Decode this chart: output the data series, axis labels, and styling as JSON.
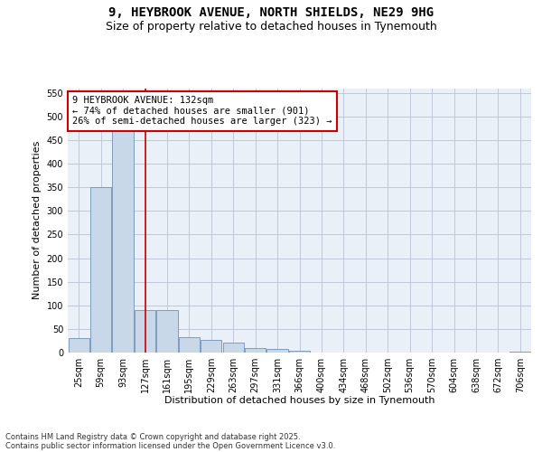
{
  "title_line1": "9, HEYBROOK AVENUE, NORTH SHIELDS, NE29 9HG",
  "title_line2": "Size of property relative to detached houses in Tynemouth",
  "xlabel": "Distribution of detached houses by size in Tynemouth",
  "ylabel": "Number of detached properties",
  "categories": [
    "25sqm",
    "59sqm",
    "93sqm",
    "127sqm",
    "161sqm",
    "195sqm",
    "229sqm",
    "263sqm",
    "297sqm",
    "331sqm",
    "366sqm",
    "400sqm",
    "434sqm",
    "468sqm",
    "502sqm",
    "536sqm",
    "570sqm",
    "604sqm",
    "638sqm",
    "672sqm",
    "706sqm"
  ],
  "values": [
    30,
    350,
    490,
    90,
    90,
    33,
    27,
    22,
    10,
    7,
    4,
    0,
    0,
    0,
    0,
    0,
    0,
    0,
    0,
    0,
    2
  ],
  "bar_color": "#c8d8e8",
  "bar_edge_color": "#7090b8",
  "grid_color": "#c0c8d8",
  "bg_color": "#eaf0f8",
  "vline_color": "#cc0000",
  "vline_x": 3.0,
  "annotation_text": "9 HEYBROOK AVENUE: 132sqm\n← 74% of detached houses are smaller (901)\n26% of semi-detached houses are larger (323) →",
  "annotation_box_color": "#cc0000",
  "ylim": [
    0,
    560
  ],
  "yticks": [
    0,
    50,
    100,
    150,
    200,
    250,
    300,
    350,
    400,
    450,
    500,
    550
  ],
  "footer_line1": "Contains HM Land Registry data © Crown copyright and database right 2025.",
  "footer_line2": "Contains public sector information licensed under the Open Government Licence v3.0.",
  "title_fontsize": 10,
  "subtitle_fontsize": 9,
  "tick_fontsize": 7,
  "label_fontsize": 8,
  "annotation_fontsize": 7.5
}
